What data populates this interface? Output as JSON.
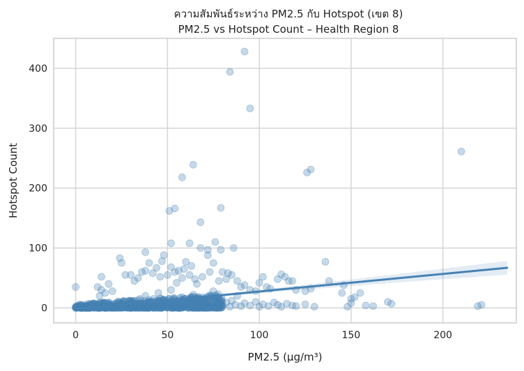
{
  "chart_data": {
    "type": "scatter",
    "title": [
      "ความสัมพันธ์ระหว่าง PM2.5 กับ Hotspot (เขต 8)",
      "PM2.5 vs Hotspot Count – Health Region 8"
    ],
    "xlabel": "PM2.5 (µg/m³)",
    "ylabel": "Hotspot Count",
    "xlim": [
      -12,
      240
    ],
    "ylim": [
      -25,
      450
    ],
    "x_ticks": [
      0,
      50,
      100,
      150,
      200
    ],
    "y_ticks": [
      0,
      100,
      200,
      300,
      400
    ],
    "grid": true,
    "colors": {
      "points": "#4682b4",
      "line": "#4682b4",
      "band": "#4682b4"
    },
    "regression": {
      "x": [
        0,
        235
      ],
      "y": [
        -2,
        67
      ]
    },
    "dense_cloud": "points concentrated at x 0–80, y 0–20",
    "points": [
      [
        0,
        0
      ],
      [
        0,
        2
      ],
      [
        0,
        1
      ],
      [
        0,
        35
      ],
      [
        1,
        0
      ],
      [
        2,
        1
      ],
      [
        3,
        0
      ],
      [
        5,
        2
      ],
      [
        7,
        1
      ],
      [
        9,
        3
      ],
      [
        10,
        0
      ],
      [
        12,
        5
      ],
      [
        14,
        2
      ],
      [
        15,
        8
      ],
      [
        16,
        1
      ],
      [
        18,
        3
      ],
      [
        20,
        6
      ],
      [
        22,
        2
      ],
      [
        24,
        9
      ],
      [
        25,
        4
      ],
      [
        27,
        1
      ],
      [
        29,
        12
      ],
      [
        30,
        3
      ],
      [
        32,
        7
      ],
      [
        34,
        2
      ],
      [
        35,
        15
      ],
      [
        37,
        4
      ],
      [
        38,
        20
      ],
      [
        40,
        6
      ],
      [
        42,
        3
      ],
      [
        43,
        10
      ],
      [
        45,
        25
      ],
      [
        46,
        5
      ],
      [
        48,
        2
      ],
      [
        50,
        8
      ],
      [
        52,
        30
      ],
      [
        54,
        4
      ],
      [
        55,
        12
      ],
      [
        57,
        6
      ],
      [
        58,
        18
      ],
      [
        60,
        3
      ],
      [
        62,
        9
      ],
      [
        64,
        22
      ],
      [
        65,
        5
      ],
      [
        67,
        14
      ],
      [
        68,
        2
      ],
      [
        70,
        7
      ],
      [
        72,
        11
      ],
      [
        74,
        3
      ],
      [
        75,
        28
      ],
      [
        77,
        6
      ],
      [
        78,
        15
      ],
      [
        80,
        4
      ],
      [
        82,
        9
      ],
      [
        84,
        2
      ],
      [
        85,
        12
      ],
      [
        87,
        5
      ],
      [
        88,
        20
      ],
      [
        90,
        3
      ],
      [
        92,
        8
      ],
      [
        95,
        4
      ],
      [
        98,
        10
      ],
      [
        100,
        2
      ],
      [
        102,
        6
      ],
      [
        105,
        3
      ],
      [
        108,
        9
      ],
      [
        110,
        5
      ],
      [
        112,
        2
      ],
      [
        115,
        7
      ],
      [
        118,
        4
      ],
      [
        120,
        3
      ],
      [
        125,
        6
      ],
      [
        130,
        2
      ],
      [
        24,
        83
      ],
      [
        25,
        75
      ],
      [
        27,
        55
      ],
      [
        30,
        55
      ],
      [
        32,
        45
      ],
      [
        34,
        50
      ],
      [
        36,
        60
      ],
      [
        38,
        62
      ],
      [
        38,
        93
      ],
      [
        40,
        75
      ],
      [
        42,
        58
      ],
      [
        44,
        67
      ],
      [
        46,
        52
      ],
      [
        47,
        78
      ],
      [
        48,
        88
      ],
      [
        50,
        55
      ],
      [
        52,
        68
      ],
      [
        54,
        60
      ],
      [
        55,
        42
      ],
      [
        56,
        62
      ],
      [
        58,
        50
      ],
      [
        59,
        65
      ],
      [
        60,
        77
      ],
      [
        62,
        55
      ],
      [
        63,
        70
      ],
      [
        65,
        48
      ],
      [
        66,
        40
      ],
      [
        68,
        100
      ],
      [
        69,
        52
      ],
      [
        72,
        88
      ],
      [
        72,
        97
      ],
      [
        73,
        60
      ],
      [
        75,
        75
      ],
      [
        76,
        110
      ],
      [
        78,
        45
      ],
      [
        79,
        97
      ],
      [
        80,
        60
      ],
      [
        82,
        48
      ],
      [
        83,
        58
      ],
      [
        85,
        55
      ],
      [
        86,
        100
      ],
      [
        88,
        45
      ],
      [
        90,
        35
      ],
      [
        92,
        38
      ],
      [
        95,
        30
      ],
      [
        98,
        28
      ],
      [
        100,
        42
      ],
      [
        102,
        52
      ],
      [
        104,
        35
      ],
      [
        106,
        32
      ],
      [
        110,
        48
      ],
      [
        112,
        56
      ],
      [
        114,
        52
      ],
      [
        116,
        45
      ],
      [
        118,
        45
      ],
      [
        120,
        30
      ],
      [
        125,
        28
      ],
      [
        128,
        32
      ],
      [
        136,
        77
      ],
      [
        138,
        45
      ],
      [
        145,
        25
      ],
      [
        146,
        38
      ],
      [
        150,
        15
      ],
      [
        152,
        18
      ],
      [
        155,
        25
      ],
      [
        148,
        2
      ],
      [
        150,
        8
      ],
      [
        158,
        4
      ],
      [
        162,
        3
      ],
      [
        170,
        10
      ],
      [
        172,
        7
      ],
      [
        219,
        3
      ],
      [
        221,
        5
      ],
      [
        14,
        52
      ],
      [
        14,
        30
      ],
      [
        12,
        35
      ],
      [
        18,
        40
      ],
      [
        20,
        28
      ],
      [
        13,
        20
      ],
      [
        16,
        25
      ],
      [
        51,
        162
      ],
      [
        54,
        166
      ],
      [
        52,
        108
      ],
      [
        58,
        218
      ],
      [
        64,
        239
      ],
      [
        62,
        108
      ],
      [
        68,
        143
      ],
      [
        79,
        167
      ],
      [
        84,
        394
      ],
      [
        92,
        428
      ],
      [
        95,
        333
      ],
      [
        126,
        226
      ],
      [
        128,
        231
      ],
      [
        210,
        261
      ]
    ]
  }
}
